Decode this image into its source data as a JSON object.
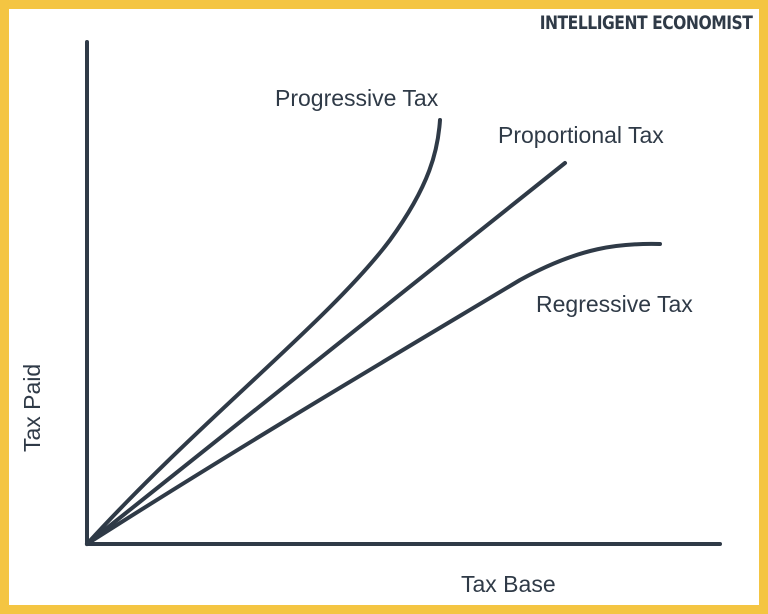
{
  "brand": {
    "name": "INTELLIGENT ECONOMIST"
  },
  "axes": {
    "x_label": "Tax Base",
    "y_label": "Tax Paid"
  },
  "curves": {
    "progressive": "Progressive Tax",
    "proportional": "Proportional Tax",
    "regressive": "Regressive Tax"
  },
  "colors": {
    "frame": "#f4c542",
    "ink": "#2f3a47",
    "background": "#ffffff"
  }
}
